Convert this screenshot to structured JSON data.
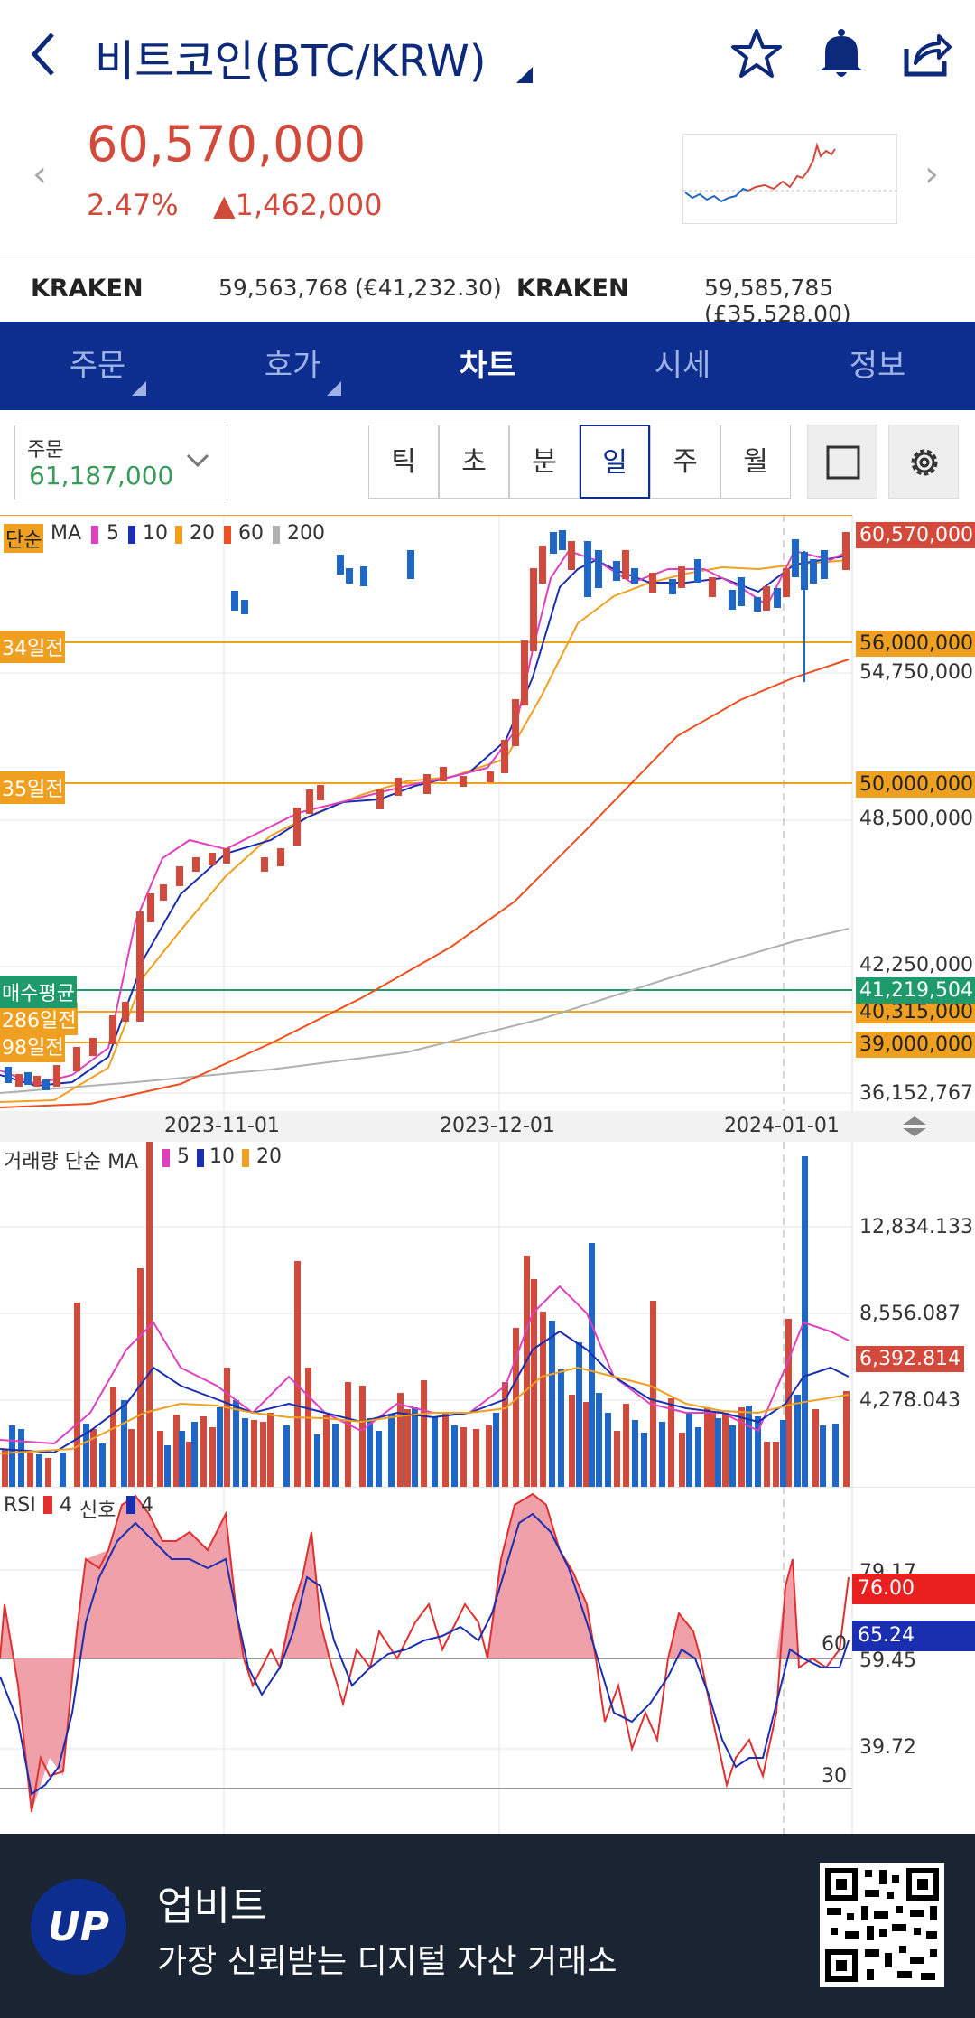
{
  "header": {
    "title": "비트코인(BTC/KRW)",
    "icons": [
      "back-arrow-icon",
      "star-icon",
      "bell-icon",
      "share-icon"
    ]
  },
  "price": {
    "current": "60,570,000",
    "change_pct": "2.47%",
    "change_amount": "▲1,462,000"
  },
  "exchanges": [
    {
      "name": "KRAKEN",
      "value": "59,563,768 (€41,232.30)"
    },
    {
      "name": "KRAKEN",
      "value": "59,585,785 (£35,528.00)"
    }
  ],
  "nav": {
    "tabs": [
      {
        "label": "주문"
      },
      {
        "label": "호가"
      },
      {
        "label": "차트"
      },
      {
        "label": "시세"
      },
      {
        "label": "정보"
      }
    ],
    "active": "차트"
  },
  "toolbar": {
    "order_label": "주문",
    "order_value": "61,187,000",
    "intervals": [
      "틱",
      "초",
      "분",
      "일",
      "주",
      "월"
    ],
    "active_interval": "일"
  },
  "chart": {
    "legend": {
      "type": "단순",
      "ma": "MA",
      "periods": [
        "5",
        "10",
        "20",
        "60",
        "200"
      ]
    },
    "hlines": [
      {
        "label": "34일전",
        "value": "56,000,000"
      },
      {
        "label": "35일전",
        "value": "50,000,000"
      },
      {
        "label": "매수평균",
        "value": "41,219,504"
      },
      {
        "label": "286일전",
        "value": "40,315,000"
      },
      {
        "label": "98일전",
        "value": "39,000,000"
      }
    ],
    "current_label": "60,570,000",
    "y_ticks": [
      "54,750,000",
      "48,500,000",
      "42,250,000",
      "36,152,767"
    ],
    "x_ticks": [
      "2023-11-01",
      "2023-12-01",
      "2024-01-01"
    ]
  },
  "volume": {
    "legend": {
      "title": "거래량 단순 MA",
      "periods": [
        "5",
        "10",
        "20"
      ]
    },
    "y_ticks": [
      "12,834.133",
      "8,556.087",
      "4,278.043"
    ],
    "current_label": "6,392.814"
  },
  "rsi": {
    "legend": {
      "title": "RSI",
      "period": "4",
      "signal_label": "신호",
      "signal": "4"
    },
    "y_ticks": [
      "79.17",
      "59.45",
      "39.72"
    ],
    "levels": [
      "60",
      "30"
    ],
    "value_red": "76.00",
    "value_blue": "65.24"
  },
  "footer": {
    "logo": "UP",
    "title": "업비트",
    "subtitle": "가장 신뢰받는 디지털 자산 거래소"
  },
  "colors": {
    "nav_bg": "#0d2e8f",
    "up_red": "#d24a3b",
    "down_blue": "#1e66c8",
    "ma5": "#e040c0",
    "ma10": "#1a2fb0",
    "ma20": "#f0a020",
    "ma60": "#f05020",
    "ma200": "#b0b0b0",
    "green_avg": "#1f9a6a"
  }
}
